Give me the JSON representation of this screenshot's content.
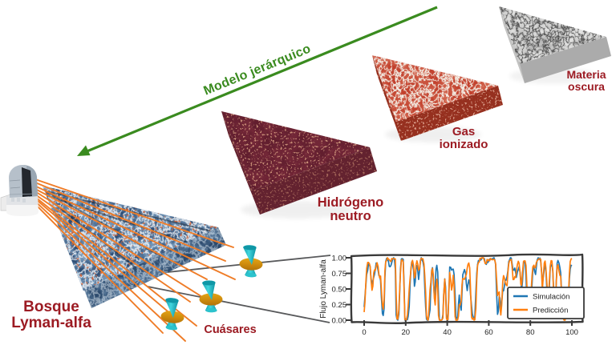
{
  "background": "#ffffff",
  "arrow": {
    "label": "Modelo jerárquico",
    "color": "#3a8b1f"
  },
  "slabs": [
    {
      "id": "dark-matter",
      "label_line1": "Materia",
      "label_line2": "oscura",
      "label_color": "#9c1b23"
    },
    {
      "id": "ionized-gas",
      "label_line1": "Gas",
      "label_line2": "ionizado",
      "label_color": "#9c1b23"
    },
    {
      "id": "neutral-hydrogen",
      "label_line1": "Hidrógeno",
      "label_line2": "neutro",
      "label_color": "#9c1b23"
    },
    {
      "id": "lyman-alpha-forest",
      "label_line1": "Bosque",
      "label_line2": "Lyman-alfa",
      "label_color": "#9c1b23"
    }
  ],
  "quasars_label": "Cuásares",
  "icons": {
    "telescope": "telescope-observatory",
    "quasar": "quasar-jets",
    "sightlines": "orange-sightline-rays",
    "callout": "zoom-callout-lines"
  },
  "colors": {
    "label_red": "#9c1b23",
    "arrow_green": "#3a8b1f",
    "ray_orange": "#f07b28",
    "callout_gray": "#58595b",
    "sim_blue": "#1f77b4",
    "pred_orange": "#ff7f0e"
  },
  "chart_data": {
    "type": "line",
    "style": "xkcd",
    "title": "",
    "xlabel": "",
    "ylabel": "Flujo Lyman-alfa",
    "xlim": [
      0,
      100
    ],
    "ylim": [
      0.0,
      1.0
    ],
    "x_ticks": [
      0,
      20,
      40,
      60,
      80,
      100
    ],
    "y_ticks": [
      0.0,
      0.25,
      0.5,
      0.75,
      1.0
    ],
    "y_tick_labels": [
      "0.00",
      "0.25",
      "0.50",
      "0.75",
      "1.00"
    ],
    "grid": false,
    "legend_position": "lower right",
    "x": [
      0.0,
      0.4,
      0.8,
      1.2,
      1.7,
      2.1,
      2.5,
      2.9,
      3.3,
      3.8,
      4.2,
      4.6,
      5.0,
      5.4,
      5.8,
      6.2,
      6.7,
      7.1,
      7.5,
      7.9,
      8.3,
      8.8,
      9.2,
      9.6,
      10.0,
      10.4,
      10.8,
      11.2,
      11.7,
      12.1,
      12.5,
      12.9,
      13.3,
      13.8,
      14.2,
      14.6,
      15.0,
      15.4,
      15.8,
      16.2,
      16.7,
      17.1,
      17.5,
      17.9,
      18.3,
      18.8,
      19.2,
      19.6,
      20.0,
      20.4,
      20.8,
      21.2,
      21.7,
      22.1,
      22.5,
      22.9,
      23.3,
      23.8,
      24.2,
      24.6,
      25.0,
      25.4,
      25.8,
      26.2,
      26.7,
      27.1,
      27.5,
      27.9,
      28.3,
      28.8,
      29.2,
      29.6,
      30.0,
      30.4,
      30.8,
      31.2,
      31.7,
      32.1,
      32.5,
      32.9,
      33.3,
      33.8,
      34.2,
      34.6,
      35.0,
      35.4,
      35.8,
      36.2,
      36.7,
      37.1,
      37.5,
      37.9,
      38.3,
      38.8,
      39.2,
      39.6,
      40.0,
      40.4,
      40.8,
      41.2,
      41.7,
      42.1,
      42.5,
      42.9,
      43.3,
      43.8,
      44.2,
      44.6,
      45.0,
      45.4,
      45.8,
      46.2,
      46.7,
      47.1,
      47.5,
      47.9,
      48.3,
      48.8,
      49.2,
      49.6,
      50.0,
      50.4,
      50.8,
      51.2,
      51.7,
      52.1,
      52.5,
      52.9,
      53.3,
      53.8,
      54.2,
      54.6,
      55.0,
      55.4,
      55.8,
      56.2,
      56.7,
      57.1,
      57.5,
      57.9,
      58.3,
      58.8,
      59.2,
      59.6,
      60.0,
      60.4,
      60.8,
      61.2,
      61.7,
      62.1,
      62.5,
      62.9,
      63.3,
      63.8,
      64.2,
      64.6,
      65.0,
      65.4,
      65.8,
      66.2,
      66.7,
      67.1,
      67.5,
      67.9,
      68.3,
      68.8,
      69.2,
      69.6,
      70.0,
      70.4,
      70.8,
      71.2,
      71.7,
      72.1,
      72.5,
      72.9,
      73.3,
      73.8,
      74.2,
      74.6,
      75.0,
      75.4,
      75.8,
      76.2,
      76.7,
      77.1,
      77.5,
      77.9,
      78.3,
      78.8,
      79.2,
      79.6,
      80.0,
      80.4,
      80.8,
      81.2,
      81.7,
      82.1,
      82.5,
      82.9,
      83.3,
      83.8,
      84.2,
      84.6,
      85.0,
      85.4,
      85.8,
      86.2,
      86.7,
      87.1,
      87.5,
      87.9,
      88.3,
      88.8,
      89.2,
      89.6,
      90.0,
      90.4,
      90.8,
      91.2,
      91.7,
      92.1,
      92.5,
      92.9,
      93.3,
      93.8,
      94.2,
      94.6,
      95.0,
      95.4,
      95.8,
      96.2,
      96.7,
      97.1,
      97.5,
      97.9,
      98.3,
      98.8,
      99.2,
      99.6,
      100.0
    ],
    "series": [
      {
        "name": "Simulación",
        "color": "#1f77b4",
        "values": [
          0.21,
          0.372,
          0.557,
          0.731,
          0.797,
          0.899,
          0.887,
          0.855,
          0.677,
          0.576,
          0.632,
          0.685,
          0.732,
          0.823,
          0.916,
          0.89,
          0.798,
          0.715,
          0.708,
          0.633,
          0.366,
          0.105,
          0.076,
          0.192,
          0.683,
          0.94,
          0.989,
          0.968,
          0.946,
          0.861,
          0.856,
          0.877,
          0.922,
          0.985,
          1.0,
          0.964,
          0.815,
          0.083,
          0.018,
          0.0,
          0.095,
          0.434,
          0.822,
          0.981,
          0.986,
          0.974,
          0.606,
          0.001,
          0.019,
          0.015,
          0.007,
          0.061,
          0.221,
          0.557,
          0.819,
          0.933,
          0.9,
          0.808,
          0.544,
          0.615,
          0.839,
          0.873,
          0.802,
          0.652,
          0.806,
          0.957,
          1.0,
          0.962,
          0.935,
          0.842,
          0.519,
          0.211,
          0.019,
          0.0,
          0.0,
          0.064,
          0.163,
          0.503,
          0.795,
          0.841,
          0.65,
          0.39,
          0.533,
          0.818,
          0.878,
          0.772,
          0.379,
          0.016,
          0.0,
          0.0,
          0.006,
          0.089,
          0.414,
          0.662,
          0.531,
          0.108,
          0.0,
          0.012,
          0.452,
          0.852,
          0.845,
          0.802,
          0.814,
          0.818,
          0.734,
          0.4,
          0.058,
          0.034,
          0.008,
          0.256,
          0.402,
          0.251,
          0.159,
          0.442,
          0.73,
          0.772,
          0.812,
          0.754,
          0.586,
          0.474,
          0.573,
          0.645,
          0.594,
          0.413,
          0.231,
          0.101,
          0.047,
          0.02,
          0.062,
          0.45,
          0.749,
          0.891,
          0.955,
          0.957,
          0.961,
          0.965,
          1.0,
          0.993,
          0.998,
          0.982,
          0.909,
          0.893,
          0.935,
          0.926,
          0.959,
          0.979,
          0.97,
          0.982,
          0.981,
          0.991,
          1.0,
          0.964,
          0.893,
          0.411,
          0.093,
          0.144,
          0.379,
          0.354,
          0.206,
          0.279,
          0.482,
          0.471,
          0.54,
          0.646,
          0.641,
          0.703,
          0.792,
          0.94,
          0.967,
          1.0,
          0.996,
          0.907,
          0.803,
          0.801,
          0.835,
          0.764,
          0.686,
          0.774,
          0.81,
          0.857,
          0.776,
          0.641,
          0.463,
          0.619,
          0.912,
          0.94,
          0.908,
          0.695,
          0.349,
          0.126,
          0.101,
          0.087,
          0.161,
          0.329,
          0.57,
          0.801,
          0.849,
          0.777,
          0.732,
          0.857,
          0.964,
          1.0,
          0.973,
          0.995,
          0.942,
          0.784,
          0.568,
          0.681,
          0.816,
          0.92,
          0.802,
          0.51,
          0.268,
          0.279,
          0.548,
          0.858,
          0.871,
          0.893,
          0.784,
          0.508,
          0.235,
          0.254,
          0.644,
          0.91,
          0.957,
          0.915,
          0.844,
          0.762,
          0.495,
          0.203,
          0.063,
          0.025,
          0.061,
          0.089,
          0.107,
          0.087,
          0.213,
          0.661,
          0.82,
          0.88,
          0.87
        ]
      },
      {
        "name": "Predicción",
        "color": "#ff7f0e",
        "values": [
          0.129,
          0.287,
          0.597,
          0.822,
          0.925,
          0.924,
          0.907,
          0.861,
          0.655,
          0.48,
          0.546,
          0.754,
          0.805,
          0.8,
          0.864,
          0.921,
          0.861,
          0.741,
          0.675,
          0.707,
          0.491,
          0.24,
          0.177,
          0.327,
          0.793,
          0.94,
          0.954,
          1.0,
          0.98,
          0.969,
          0.949,
          0.938,
          0.987,
          0.981,
          0.986,
          0.985,
          0.98,
          0.432,
          0.024,
          0.017,
          0.177,
          0.486,
          0.764,
          0.953,
          0.972,
          0.932,
          0.522,
          0.01,
          0.0,
          0.009,
          0.081,
          0.228,
          0.498,
          0.655,
          0.801,
          0.921,
          0.958,
          0.88,
          0.677,
          0.71,
          0.894,
          0.951,
          0.904,
          0.8,
          0.825,
          0.948,
          0.991,
          0.984,
          0.983,
          0.9,
          0.709,
          0.442,
          0.076,
          0.012,
          0.003,
          0.167,
          0.485,
          0.606,
          0.778,
          0.83,
          0.734,
          0.354,
          0.244,
          0.487,
          0.656,
          0.53,
          0.076,
          0.0,
          0.0,
          0.0,
          0.006,
          0.036,
          0.405,
          0.658,
          0.418,
          0.027,
          0.0,
          0.018,
          0.48,
          0.764,
          0.623,
          0.482,
          0.556,
          0.719,
          0.574,
          0.056,
          0.0,
          0.0,
          0.002,
          0.066,
          0.247,
          0.241,
          0.306,
          0.568,
          0.67,
          0.659,
          0.655,
          0.699,
          0.735,
          0.833,
          0.895,
          0.917,
          0.837,
          0.51,
          0.05,
          0.015,
          0.035,
          0.0,
          0.006,
          0.188,
          0.653,
          0.875,
          0.926,
          0.93,
          0.992,
          0.988,
          1.0,
          1.0,
          0.998,
          0.947,
          0.906,
          0.911,
          0.973,
          0.956,
          0.968,
          0.95,
          0.989,
          0.974,
          0.968,
          0.972,
          0.974,
          0.958,
          0.907,
          0.64,
          0.394,
          0.436,
          0.453,
          0.195,
          0.083,
          0.242,
          0.621,
          0.714,
          0.679,
          0.603,
          0.567,
          0.551,
          0.759,
          0.903,
          0.954,
          0.963,
          0.973,
          0.865,
          0.65,
          0.651,
          0.698,
          0.683,
          0.786,
          0.892,
          0.944,
          0.912,
          0.769,
          0.578,
          0.558,
          0.767,
          0.942,
          0.95,
          0.949,
          0.874,
          0.588,
          0.206,
          0.105,
          0.1,
          0.242,
          0.469,
          0.707,
          0.855,
          0.881,
          0.837,
          0.851,
          0.924,
          0.95,
          0.972,
          0.985,
          0.979,
          0.978,
          0.766,
          0.472,
          0.701,
          0.917,
          0.948,
          0.833,
          0.621,
          0.421,
          0.408,
          0.643,
          0.875,
          0.954,
          0.95,
          0.801,
          0.431,
          0.182,
          0.263,
          0.61,
          0.855,
          0.888,
          0.79,
          0.721,
          0.701,
          0.458,
          0.137,
          0.032,
          0.003,
          0.0,
          0.063,
          0.14,
          0.202,
          0.346,
          0.754,
          0.938,
          0.98,
          0.991
        ]
      }
    ]
  }
}
